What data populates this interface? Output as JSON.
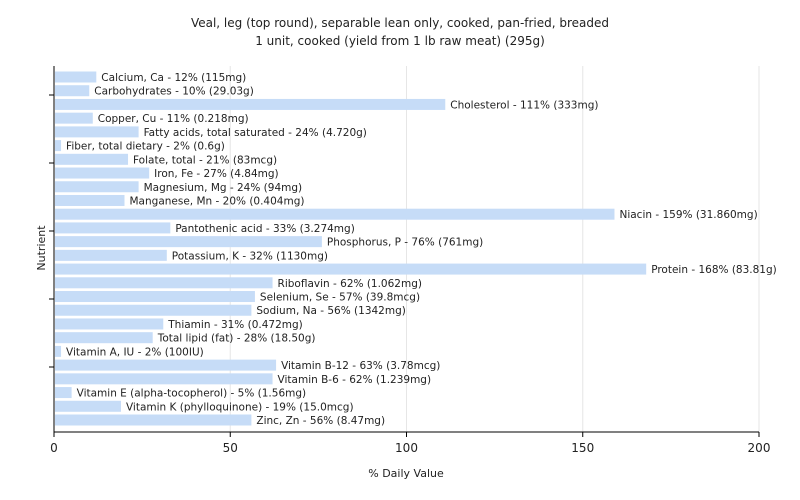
{
  "chart_data": {
    "type": "bar",
    "orientation": "horizontal",
    "title": "Veal, leg (top round), separable lean only, cooked, pan-fried, breaded",
    "subtitle": "1 unit, cooked (yield from 1 lb raw meat) (295g)",
    "xlabel": "% Daily Value",
    "ylabel": "Nutrient",
    "xlim": [
      0,
      200
    ],
    "xticks": [
      0,
      50,
      100,
      150,
      200
    ],
    "grid": "vertical",
    "bar_color": "#c6dcf7",
    "categories": [
      "Calcium, Ca",
      "Carbohydrates",
      "Cholesterol",
      "Copper, Cu",
      "Fatty acids, total saturated",
      "Fiber, total dietary",
      "Folate, total",
      "Iron, Fe",
      "Magnesium, Mg",
      "Manganese, Mn",
      "Niacin",
      "Pantothenic acid",
      "Phosphorus, P",
      "Potassium, K",
      "Protein",
      "Riboflavin",
      "Selenium, Se",
      "Sodium, Na",
      "Thiamin",
      "Total lipid (fat)",
      "Vitamin A, IU",
      "Vitamin B-12",
      "Vitamin B-6",
      "Vitamin E (alpha-tocopherol)",
      "Vitamin K (phylloquinone)",
      "Zinc, Zn"
    ],
    "values": [
      12,
      10,
      111,
      11,
      24,
      2,
      21,
      27,
      24,
      20,
      159,
      33,
      76,
      32,
      168,
      62,
      57,
      56,
      31,
      28,
      2,
      63,
      62,
      5,
      19,
      56
    ],
    "labels": [
      "Calcium, Ca - 12% (115mg)",
      "Carbohydrates - 10% (29.03g)",
      "Cholesterol - 111% (333mg)",
      "Copper, Cu - 11% (0.218mg)",
      "Fatty acids, total saturated - 24% (4.720g)",
      "Fiber, total dietary - 2% (0.6g)",
      "Folate, total - 21% (83mcg)",
      "Iron, Fe - 27% (4.84mg)",
      "Magnesium, Mg - 24% (94mg)",
      "Manganese, Mn - 20% (0.404mg)",
      "Niacin - 159% (31.860mg)",
      "Pantothenic acid - 33% (3.274mg)",
      "Phosphorus, P - 76% (761mg)",
      "Potassium, K - 32% (1130mg)",
      "Protein - 168% (83.81g)",
      "Riboflavin - 62% (1.062mg)",
      "Selenium, Se - 57% (39.8mcg)",
      "Sodium, Na - 56% (1342mg)",
      "Thiamin - 31% (0.472mg)",
      "Total lipid (fat) - 28% (18.50g)",
      "Vitamin A, IU - 2% (100IU)",
      "Vitamin B-12 - 63% (3.78mcg)",
      "Vitamin B-6 - 62% (1.239mg)",
      "Vitamin E (alpha-tocopherol) - 5% (1.56mg)",
      "Vitamin K (phylloquinone) - 19% (15.0mcg)",
      "Zinc, Zn - 56% (8.47mg)"
    ]
  }
}
